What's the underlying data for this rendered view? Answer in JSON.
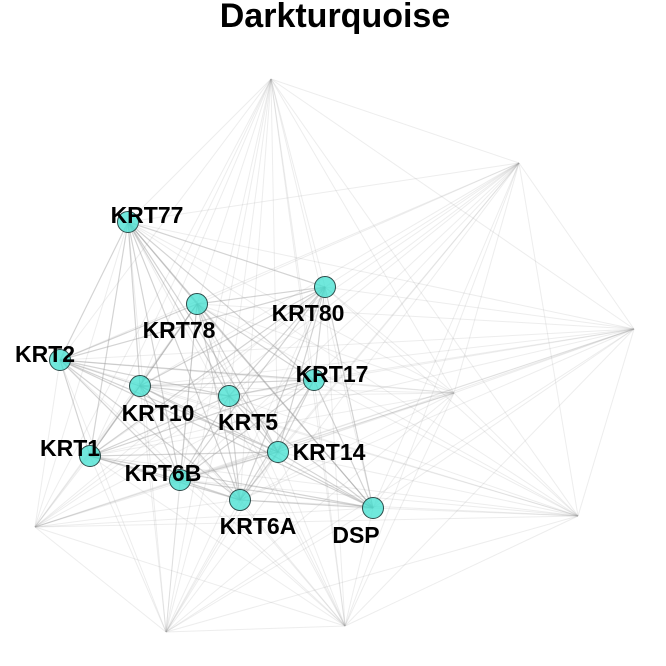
{
  "title": "Darkturquoise",
  "node_color": "#40E0D0",
  "edge_color": "#9a9a9a",
  "nodes": [
    {
      "id": "KRT77"
    },
    {
      "id": "KRT78"
    },
    {
      "id": "KRT80"
    },
    {
      "id": "KRT2"
    },
    {
      "id": "KRT17"
    },
    {
      "id": "KRT10"
    },
    {
      "id": "KRT5"
    },
    {
      "id": "KRT14"
    },
    {
      "id": "KRT1"
    },
    {
      "id": "KRT6B"
    },
    {
      "id": "KRT6A"
    },
    {
      "id": "DSP"
    }
  ]
}
